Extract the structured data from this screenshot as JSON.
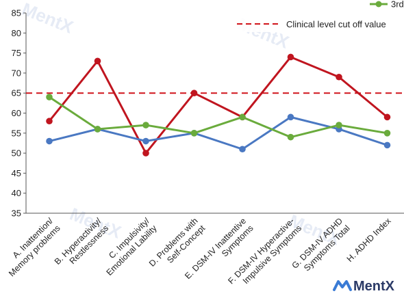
{
  "chart_data": {
    "type": "line",
    "categories": [
      [
        "A. Inattention/",
        "Memory problems"
      ],
      [
        "B. Hyperactivity/",
        "Restlessness"
      ],
      [
        "C. Impulsivity/",
        "Emotional Lability"
      ],
      [
        "D. Problems with",
        "Self-Concept"
      ],
      [
        "E. DSM-IV Inattentive",
        "Symptoms"
      ],
      [
        "F. DSM-IV Hyperactive-",
        "Impulsive Symptoms"
      ],
      [
        "G. DSM-IV ADHD",
        "Symptoms Total"
      ],
      [
        "H. ADHD Index"
      ]
    ],
    "series": [
      {
        "name": "",
        "color": "#c0151f",
        "values": [
          58,
          73,
          50,
          65,
          59,
          74,
          69,
          59
        ]
      },
      {
        "name": "",
        "color": "#4a78c2",
        "values": [
          53,
          56,
          53,
          55,
          51,
          59,
          56,
          52
        ]
      },
      {
        "name": "3rd",
        "color": "#6aab3c",
        "values": [
          64,
          56,
          57,
          55,
          59,
          54,
          57,
          55
        ]
      }
    ],
    "reference_line": {
      "value": 65,
      "label": "Clinical level cut off value",
      "color": "#d0131a",
      "style": "dashed"
    },
    "ylim": [
      35,
      85
    ],
    "yticks": [
      35,
      40,
      45,
      50,
      55,
      60,
      65,
      70,
      75,
      80,
      85
    ],
    "grid": false,
    "legend_placement": "top-right"
  },
  "watermark": {
    "text": "MentX"
  },
  "brand": {
    "text": "MentX"
  }
}
